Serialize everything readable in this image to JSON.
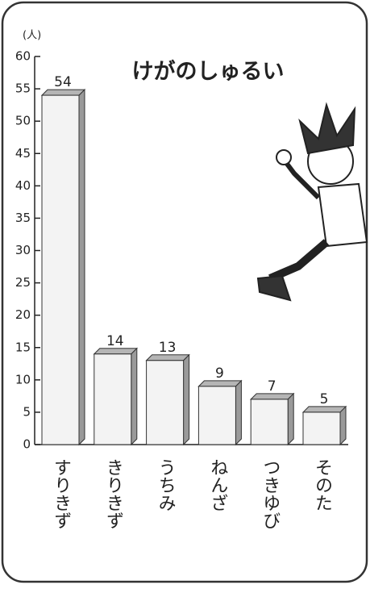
{
  "chart_data": {
    "type": "bar",
    "title": "けがのしゅるい",
    "y_unit": "(人)",
    "categories": [
      "すりきず",
      "きりきず",
      "うちみ",
      "ねんざ",
      "つきゆび",
      "そのた"
    ],
    "values": [
      54,
      14,
      13,
      9,
      7,
      5
    ],
    "color": "#f3f3f3",
    "ylim": [
      0,
      60
    ],
    "yticks": [
      0,
      5,
      10,
      15,
      20,
      25,
      30,
      35,
      40,
      45,
      50,
      55,
      60
    ]
  }
}
